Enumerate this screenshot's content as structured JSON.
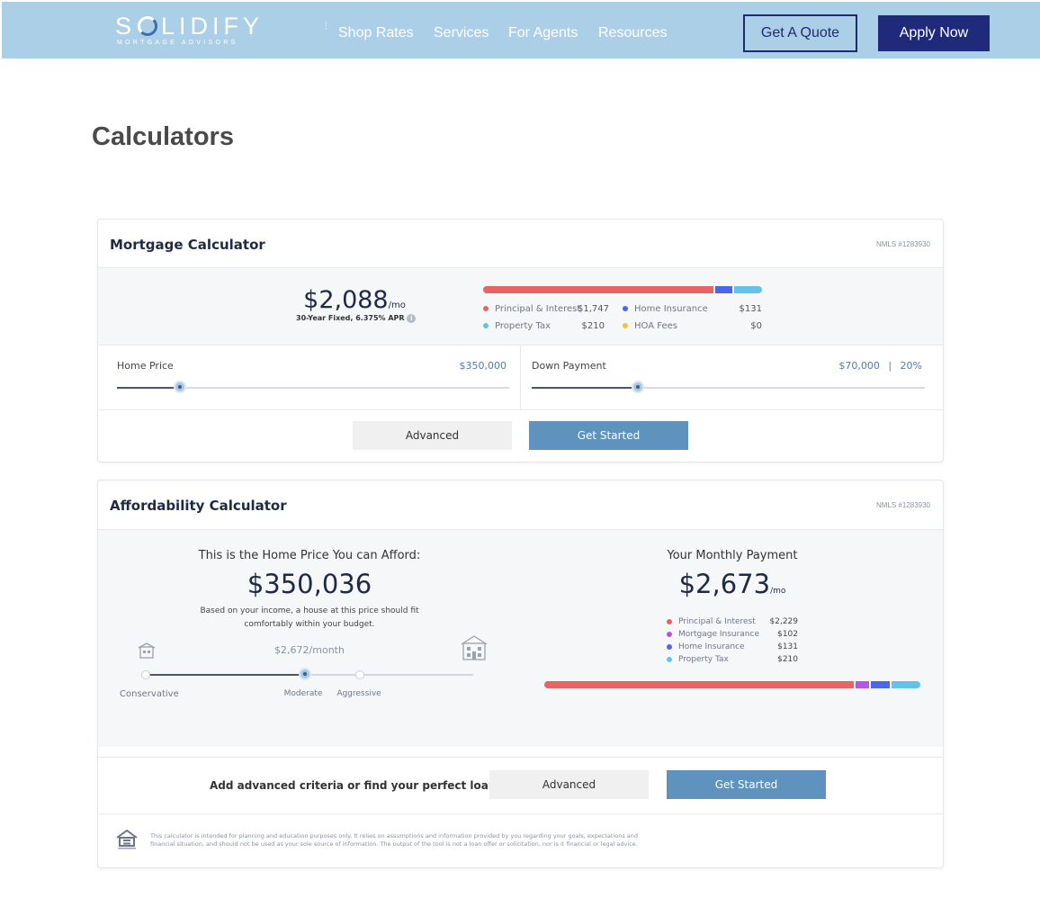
{
  "header": {
    "logo_main": "S  LIDIFY",
    "logo_letter_s": "S",
    "logo_rest": "LIDIFY",
    "logo_sub": "MORTGAGE ADVISORS",
    "nav": [
      "Shop Rates",
      "Services",
      "For Agents",
      "Resources"
    ],
    "quote_label": "Get A Quote",
    "apply_label": "Apply Now",
    "brand_color": "#aacfe6",
    "apply_color": "#1f2a7a"
  },
  "page": {
    "title": "Calculators"
  },
  "mortgage": {
    "title": "Mortgage Calculator",
    "nmls": "NMLS #1283930",
    "payment": "$2,088",
    "per": "/mo",
    "subtitle": "30-Year Fixed, 6.375% APR",
    "info_icon": "info-icon",
    "breakdown": [
      {
        "label": "Principal & Interest",
        "value": "$1,747",
        "color": "#e86464",
        "amount": 1747
      },
      {
        "label": "Home Insurance",
        "value": "$131",
        "color": "#4b66e8",
        "amount": 131
      },
      {
        "label": "Property Tax",
        "value": "$210",
        "color": "#62c3ea",
        "amount": 210
      },
      {
        "label": "HOA Fees",
        "value": "$0",
        "color": "#f2c23a",
        "amount": 0
      }
    ],
    "home_price_label": "Home Price",
    "home_price_value": "$350,000",
    "home_price_fraction": 0.16,
    "down_payment_label": "Down Payment",
    "down_payment_value": "$70,000",
    "down_payment_sep": "|",
    "down_payment_pct": "20%",
    "down_payment_fraction": 0.27,
    "advanced_label": "Advanced",
    "start_label": "Get Started"
  },
  "affordability": {
    "title": "Affordability Calculator",
    "nmls": "NMLS #1283930",
    "afford_heading": "This is the Home Price You can Afford:",
    "afford_price": "$350,036",
    "afford_note_1": "Based on your income, a house at this price should fit",
    "afford_note_2": "comfortably within your budget.",
    "monthly_hint": "$2,672/month",
    "levels": [
      "Conservative",
      "Moderate",
      "Aggressive"
    ],
    "selected_level": "Moderate",
    "payment_heading": "Your Monthly Payment",
    "payment": "$2,673",
    "per": "/mo",
    "breakdown": [
      {
        "label": "Principal & Interest",
        "value": "$2,229",
        "color": "#e86464",
        "amount": 2229
      },
      {
        "label": "Mortgage Insurance",
        "value": "$102",
        "color": "#b456e8",
        "amount": 102
      },
      {
        "label": "Home Insurance",
        "value": "$131",
        "color": "#4b66e8",
        "amount": 131
      },
      {
        "label": "Property Tax",
        "value": "$210",
        "color": "#62c3ea",
        "amount": 210
      }
    ],
    "cta_text": "Add advanced criteria or find your perfect loan.",
    "advanced_label": "Advanced",
    "start_label": "Get Started",
    "disclaimer_1": "This calculator is intended for planning and education purposes only. It relies on assumptions and information provided by you regarding your goals, expectations and",
    "disclaimer_2": "financial situation, and should not be used as your sole source of information. The output of the tool is not a loan offer or solicitation, nor is it financial or legal advice.",
    "equal_housing_icon": "equal-housing-icon"
  }
}
